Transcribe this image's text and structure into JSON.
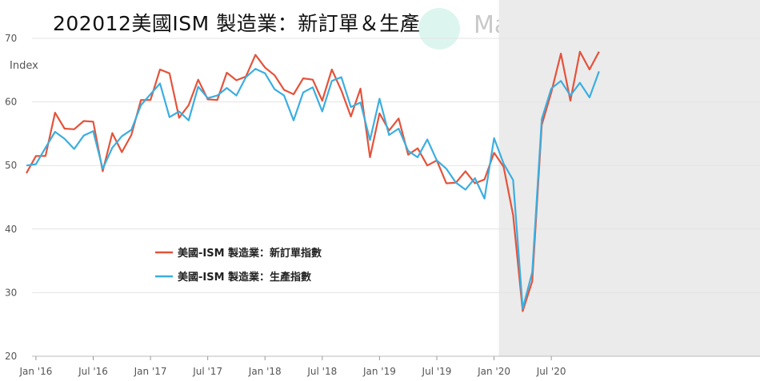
{
  "title": "202012美國ISM 製造業：新訂單＆生產",
  "watermark": "MacroMicro",
  "chart_data": {
    "type": "line",
    "ylabel": "Index",
    "ylim": [
      20,
      70
    ],
    "yticks": [
      20,
      30,
      40,
      50,
      60,
      70
    ],
    "x": [
      "2015-12",
      "2016-01",
      "2016-02",
      "2016-03",
      "2016-04",
      "2016-05",
      "2016-06",
      "2016-07",
      "2016-08",
      "2016-09",
      "2016-10",
      "2016-11",
      "2016-12",
      "2017-01",
      "2017-02",
      "2017-03",
      "2017-04",
      "2017-05",
      "2017-06",
      "2017-07",
      "2017-08",
      "2017-09",
      "2017-10",
      "2017-11",
      "2017-12",
      "2018-01",
      "2018-02",
      "2018-03",
      "2018-04",
      "2018-05",
      "2018-06",
      "2018-07",
      "2018-08",
      "2018-09",
      "2018-10",
      "2018-11",
      "2018-12",
      "2019-01",
      "2019-02",
      "2019-03",
      "2019-04",
      "2019-05",
      "2019-06",
      "2019-07",
      "2019-08",
      "2019-09",
      "2019-10",
      "2019-11",
      "2019-12",
      "2020-01",
      "2020-02",
      "2020-03",
      "2020-04",
      "2020-05",
      "2020-06",
      "2020-07",
      "2020-08",
      "2020-09",
      "2020-10",
      "2020-11",
      "2020-12"
    ],
    "xticks": [
      {
        "label": "Jan '16",
        "date": "2016-01"
      },
      {
        "label": "Jul '16",
        "date": "2016-07"
      },
      {
        "label": "Jan '17",
        "date": "2017-01"
      },
      {
        "label": "Jul '17",
        "date": "2017-07"
      },
      {
        "label": "Jan '18",
        "date": "2018-01"
      },
      {
        "label": "Jul '18",
        "date": "2018-07"
      },
      {
        "label": "Jan '19",
        "date": "2019-01"
      },
      {
        "label": "Jul '19",
        "date": "2019-07"
      },
      {
        "label": "Jan '20",
        "date": "2020-01"
      },
      {
        "label": "Jul '20",
        "date": "2020-07"
      }
    ],
    "shaded_region": {
      "start": "2020-02",
      "end": "2020-12",
      "color": "#ebebeb"
    },
    "series": [
      {
        "name": "美國-ISM 製造業：新訂單指數",
        "color": "#e4533b",
        "values": [
          48.8,
          51.5,
          51.5,
          58.3,
          55.8,
          55.7,
          57.0,
          56.9,
          49.1,
          55.1,
          52.1,
          54.8,
          60.3,
          60.3,
          65.1,
          64.5,
          57.5,
          59.5,
          63.5,
          60.4,
          60.3,
          64.6,
          63.4,
          64.0,
          67.4,
          65.4,
          64.2,
          61.9,
          61.2,
          63.7,
          63.5,
          60.2,
          65.1,
          61.8,
          57.7,
          62.1,
          51.3,
          58.2,
          55.5,
          57.4,
          51.7,
          52.7,
          50.0,
          50.8,
          47.2,
          47.3,
          49.1,
          47.2,
          47.8,
          52.0,
          49.8,
          42.2,
          27.1,
          31.8,
          56.4,
          61.5,
          67.6,
          60.2,
          67.9,
          65.1,
          67.9
        ]
      },
      {
        "name": "美國-ISM 製造業：生產指數",
        "color": "#3baee0",
        "values": [
          50.0,
          50.2,
          52.8,
          55.3,
          54.2,
          52.6,
          54.7,
          55.4,
          49.5,
          52.8,
          54.6,
          55.6,
          59.5,
          61.2,
          62.9,
          57.6,
          58.5,
          57.1,
          62.4,
          60.6,
          61.0,
          62.2,
          61.0,
          63.9,
          65.2,
          64.5,
          62.0,
          61.0,
          57.1,
          61.5,
          62.3,
          58.5,
          63.3,
          63.9,
          59.2,
          59.9,
          54.0,
          60.5,
          54.8,
          55.8,
          52.3,
          51.3,
          54.1,
          50.8,
          49.5,
          47.3,
          46.2,
          48.0,
          44.8,
          54.3,
          50.3,
          47.7,
          27.5,
          33.2,
          57.3,
          62.1,
          63.3,
          61.0,
          63.0,
          60.7,
          64.8
        ]
      }
    ],
    "legend_position": "center-left"
  }
}
